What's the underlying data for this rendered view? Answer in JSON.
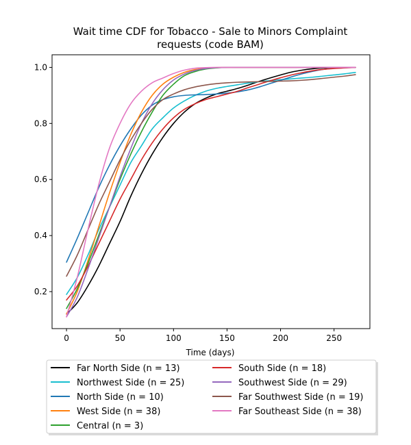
{
  "chart_data": {
    "type": "line",
    "title": "Wait time CDF for Tobacco - Sale to Minors Complaint\nrequests (code BAM)",
    "xlabel": "Time (days)",
    "ylabel": "",
    "xlim": [
      -13.5,
      283.5
    ],
    "ylim": [
      0.068,
      1.045
    ],
    "xticks": [
      0,
      50,
      100,
      150,
      200,
      250
    ],
    "yticks": [
      0.2,
      0.4,
      0.6,
      0.8,
      1.0
    ],
    "grid": false,
    "legend_position": "bottom-center",
    "series": [
      {
        "name": "Far North Side (n = 13)",
        "color": "#000000",
        "x": [
          0,
          10,
          20,
          30,
          40,
          50,
          60,
          70,
          80,
          90,
          100,
          110,
          120,
          130,
          140,
          150,
          160,
          170,
          180,
          190,
          200,
          210,
          220,
          230,
          240,
          250,
          260,
          270
        ],
        "y": [
          0.12,
          0.16,
          0.22,
          0.29,
          0.37,
          0.45,
          0.54,
          0.62,
          0.69,
          0.75,
          0.8,
          0.84,
          0.87,
          0.89,
          0.905,
          0.915,
          0.925,
          0.937,
          0.95,
          0.962,
          0.973,
          0.983,
          0.99,
          0.995,
          0.998,
          0.999,
          1.0,
          1.0
        ]
      },
      {
        "name": "Northwest Side (n = 25)",
        "color": "#17becf",
        "x": [
          0,
          10,
          20,
          30,
          40,
          50,
          60,
          70,
          80,
          90,
          100,
          110,
          120,
          130,
          140,
          150,
          160,
          170,
          180,
          190,
          200,
          210,
          220,
          230,
          240,
          250,
          260,
          270
        ],
        "y": [
          0.19,
          0.25,
          0.33,
          0.42,
          0.5,
          0.58,
          0.66,
          0.72,
          0.78,
          0.82,
          0.855,
          0.88,
          0.9,
          0.915,
          0.925,
          0.932,
          0.938,
          0.944,
          0.949,
          0.953,
          0.956,
          0.959,
          0.962,
          0.965,
          0.969,
          0.973,
          0.977,
          0.982
        ]
      },
      {
        "name": "North Side (n = 10)",
        "color": "#1f77b4",
        "x": [
          0,
          10,
          20,
          30,
          40,
          50,
          60,
          70,
          80,
          90,
          100,
          110,
          120,
          130,
          140,
          150,
          160,
          170,
          180,
          190,
          200,
          210,
          220,
          230,
          240,
          250,
          260,
          270
        ],
        "y": [
          0.305,
          0.39,
          0.48,
          0.57,
          0.65,
          0.72,
          0.78,
          0.83,
          0.865,
          0.885,
          0.895,
          0.9,
          0.902,
          0.903,
          0.905,
          0.908,
          0.913,
          0.92,
          0.93,
          0.942,
          0.954,
          0.966,
          0.977,
          0.986,
          0.993,
          0.997,
          0.999,
          1.0
        ]
      },
      {
        "name": "West Side (n = 38)",
        "color": "#ff7f0e",
        "x": [
          0,
          10,
          20,
          30,
          40,
          50,
          60,
          70,
          80,
          90,
          100,
          110,
          120,
          130,
          140,
          150,
          160,
          170,
          180,
          190,
          200,
          210,
          220,
          230,
          240,
          250,
          260,
          270
        ],
        "y": [
          0.12,
          0.2,
          0.31,
          0.43,
          0.55,
          0.66,
          0.76,
          0.84,
          0.9,
          0.94,
          0.965,
          0.982,
          0.992,
          0.997,
          0.999,
          1.0,
          1.0,
          1.0,
          1.0,
          1.0,
          1.0,
          1.0,
          1.0,
          1.0,
          1.0,
          1.0,
          1.0,
          1.0
        ]
      },
      {
        "name": "Central (n = 3)",
        "color": "#2ca02c",
        "x": [
          0,
          10,
          20,
          30,
          40,
          50,
          60,
          70,
          80,
          90,
          100,
          110,
          120,
          130,
          140,
          150,
          160,
          170,
          180,
          190,
          200,
          210,
          220,
          230,
          240,
          250,
          260,
          270
        ],
        "y": [
          0.14,
          0.21,
          0.3,
          0.4,
          0.5,
          0.6,
          0.69,
          0.77,
          0.84,
          0.9,
          0.94,
          0.97,
          0.985,
          0.994,
          0.998,
          1.0,
          1.0,
          1.0,
          1.0,
          1.0,
          1.0,
          1.0,
          1.0,
          1.0,
          1.0,
          1.0,
          1.0,
          1.0
        ]
      },
      {
        "name": "South Side (n = 18)",
        "color": "#d62728",
        "x": [
          0,
          10,
          20,
          30,
          40,
          50,
          60,
          70,
          80,
          90,
          100,
          110,
          120,
          130,
          140,
          150,
          160,
          170,
          180,
          190,
          200,
          210,
          220,
          230,
          240,
          250,
          260,
          270
        ],
        "y": [
          0.17,
          0.22,
          0.29,
          0.37,
          0.45,
          0.53,
          0.6,
          0.67,
          0.73,
          0.78,
          0.82,
          0.85,
          0.87,
          0.885,
          0.895,
          0.905,
          0.915,
          0.928,
          0.94,
          0.952,
          0.963,
          0.973,
          0.981,
          0.988,
          0.993,
          0.996,
          0.998,
          1.0
        ]
      },
      {
        "name": "Southwest Side (n = 29)",
        "color": "#9467bd",
        "x": [
          0,
          10,
          20,
          30,
          40,
          50,
          60,
          70,
          80,
          90,
          100,
          110,
          120,
          130,
          140,
          150,
          160,
          170,
          180,
          190,
          200,
          210,
          220,
          230,
          240,
          250,
          260,
          270
        ],
        "y": [
          0.11,
          0.18,
          0.28,
          0.39,
          0.5,
          0.61,
          0.71,
          0.8,
          0.87,
          0.92,
          0.955,
          0.976,
          0.989,
          0.996,
          0.999,
          1.0,
          1.0,
          1.0,
          1.0,
          1.0,
          1.0,
          1.0,
          1.0,
          1.0,
          1.0,
          1.0,
          1.0,
          1.0
        ]
      },
      {
        "name": "Far Southwest Side (n = 19)",
        "color": "#8c564b",
        "x": [
          0,
          10,
          20,
          30,
          40,
          50,
          60,
          70,
          80,
          90,
          100,
          110,
          120,
          130,
          140,
          150,
          160,
          170,
          180,
          190,
          200,
          210,
          220,
          230,
          240,
          250,
          260,
          270
        ],
        "y": [
          0.255,
          0.33,
          0.42,
          0.51,
          0.59,
          0.67,
          0.74,
          0.8,
          0.85,
          0.885,
          0.905,
          0.92,
          0.93,
          0.937,
          0.942,
          0.945,
          0.947,
          0.948,
          0.949,
          0.95,
          0.951,
          0.952,
          0.954,
          0.957,
          0.961,
          0.965,
          0.969,
          0.974
        ]
      },
      {
        "name": "Far Southeast Side (n = 38)",
        "color": "#e377c2",
        "x": [
          0,
          10,
          20,
          30,
          40,
          50,
          60,
          70,
          80,
          90,
          100,
          110,
          120,
          130,
          140,
          150,
          160,
          170,
          180,
          190,
          200,
          210,
          220,
          230,
          240,
          250,
          260,
          270
        ],
        "y": [
          0.11,
          0.25,
          0.42,
          0.58,
          0.71,
          0.8,
          0.87,
          0.915,
          0.945,
          0.962,
          0.978,
          0.99,
          0.997,
          0.999,
          1.0,
          1.0,
          1.0,
          1.0,
          1.0,
          1.0,
          1.0,
          1.0,
          1.0,
          1.0,
          1.0,
          1.0,
          1.0,
          1.0
        ]
      }
    ],
    "legend_columns": [
      [
        "Far North Side (n = 13)",
        "Northwest Side (n = 25)",
        "North Side (n = 10)",
        "West Side (n = 38)",
        "Central (n = 3)"
      ],
      [
        "South Side (n = 18)",
        "Southwest Side (n = 29)",
        "Far Southwest Side (n = 19)",
        "Far Southeast Side (n = 38)"
      ]
    ]
  }
}
